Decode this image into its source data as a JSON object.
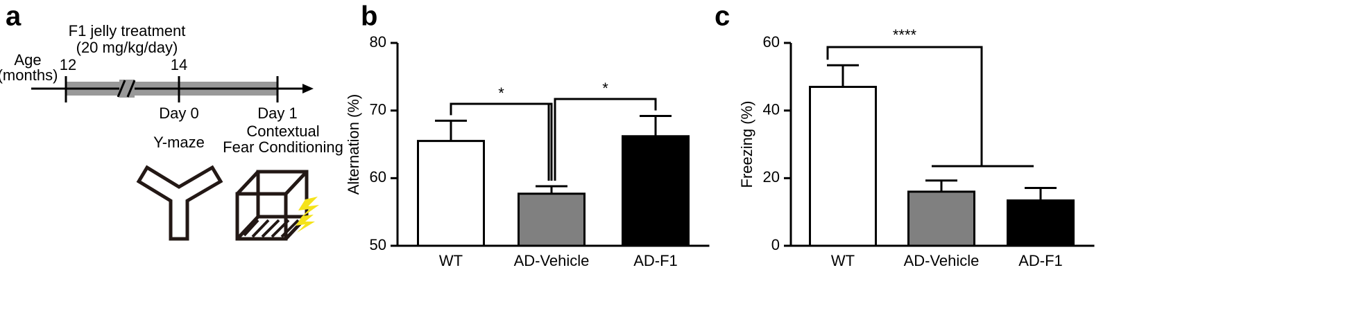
{
  "panel_labels": [
    "a",
    "b",
    "c"
  ],
  "timeline": {
    "title": [
      "F1 jelly treatment",
      "(20 mg/kg/day)"
    ],
    "age_label": [
      "Age",
      "(months)"
    ],
    "ticks": [
      "12",
      "14"
    ],
    "days": [
      "Day 0",
      "Day 1"
    ],
    "tests": {
      "day0": "Y-maze",
      "day1": [
        "Contextual",
        "Fear Conditioning"
      ]
    }
  },
  "chart_data": [
    {
      "type": "bar",
      "ylabel": "Alternation (%)",
      "categories": [
        "WT",
        "AD-Vehicle",
        "AD-F1"
      ],
      "values": [
        65.5,
        57.7,
        66.2
      ],
      "errors": [
        3.0,
        1.1,
        3.0
      ],
      "colors": [
        "#ffffff",
        "#808080",
        "#000000"
      ],
      "ylim": [
        50,
        80
      ],
      "yticks": [
        50,
        60,
        70,
        80
      ],
      "annotations": [
        "*",
        "*"
      ]
    },
    {
      "type": "bar",
      "ylabel": "Freezing (%)",
      "categories": [
        "WT",
        "AD-Vehicle",
        "AD-F1"
      ],
      "values": [
        47,
        16,
        13.4
      ],
      "errors": [
        6.4,
        3.3,
        3.7
      ],
      "colors": [
        "#ffffff",
        "#808080",
        "#000000"
      ],
      "ylim": [
        0,
        60
      ],
      "yticks": [
        0,
        20,
        40,
        60
      ],
      "annotations": [
        "****"
      ]
    }
  ]
}
